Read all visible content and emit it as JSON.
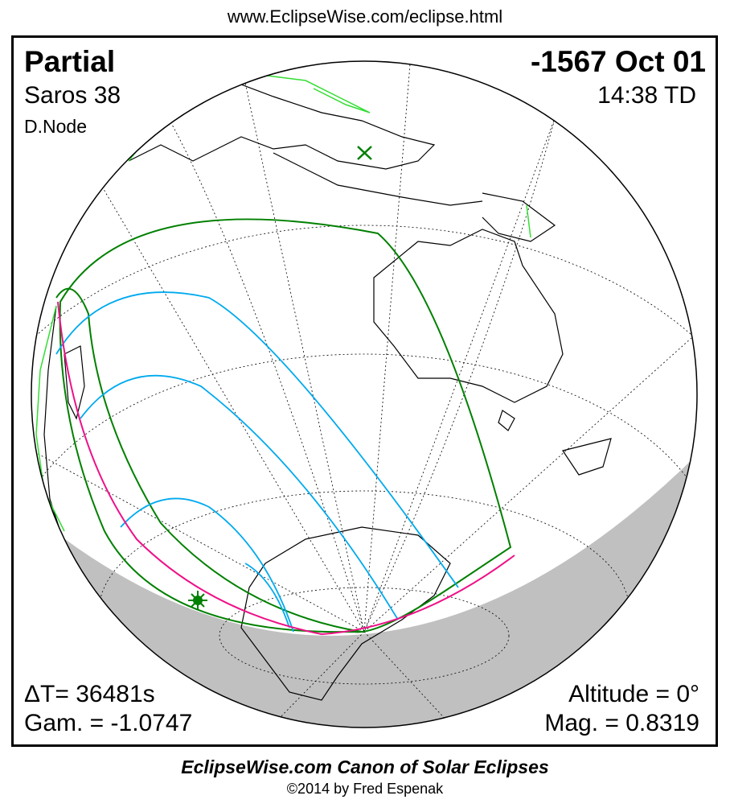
{
  "header": {
    "url": "www.EclipseWise.com/eclipse.html"
  },
  "eclipse": {
    "type": "Partial",
    "date": "-1567 Oct 01",
    "saros": "Saros  38",
    "time": "14:38 TD",
    "node": "D.Node",
    "delta_t": "ΔT=  36481s",
    "gamma": "Gam. = -1.0747",
    "altitude": "Altitude =  0°",
    "magnitude": "Mag. = 0.8319"
  },
  "map": {
    "colors": {
      "limits": "#008000",
      "magnitude_lines": "#00aaee",
      "max_eclipse_line": "#ee1188",
      "coastlines_sunlit_region": "#33dd33",
      "night": "#c0c0c0"
    },
    "markers": [
      "greatest-eclipse-x-icon",
      "sunrise-point-star-icon"
    ]
  },
  "footer": {
    "title": "EclipseWise.com Canon of Solar Eclipses",
    "copyright": "©2014 by Fred Espenak"
  }
}
